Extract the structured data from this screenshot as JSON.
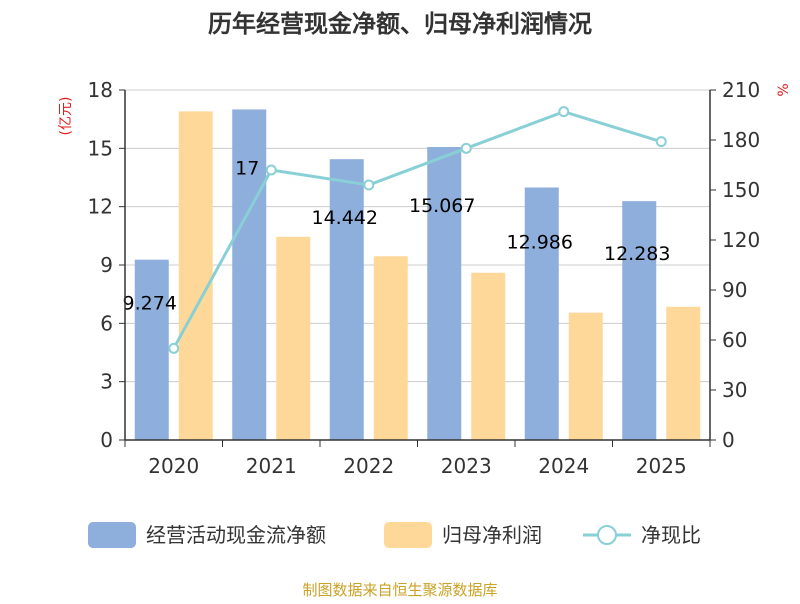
{
  "title": "历年经营现金净额、归母净利润情况",
  "source": "制图数据来自恒生聚源数据库",
  "chart_data": {
    "type": "bar",
    "categories": [
      "2020",
      "2021",
      "2022",
      "2023",
      "2024",
      "2025"
    ],
    "series": [
      {
        "name": "经营活动现金流净额",
        "kind": "bar",
        "axis": "left",
        "color": "#8eaedb",
        "values": [
          9.274,
          17,
          14.442,
          15.067,
          12.986,
          12.283
        ],
        "labels": [
          "9.274",
          "17",
          "14.442",
          "15.067",
          "12.986",
          "12.283"
        ]
      },
      {
        "name": "归母净利润",
        "kind": "bar",
        "axis": "left",
        "color": "#fdd898",
        "values": [
          16.9,
          10.45,
          9.45,
          8.6,
          6.55,
          6.85
        ]
      },
      {
        "name": "净现比",
        "kind": "line",
        "axis": "right",
        "color": "#89d0d6",
        "values": [
          55,
          162,
          153,
          175,
          197,
          179
        ]
      }
    ],
    "y_left": {
      "label": "(亿元)",
      "ylim": [
        0,
        18
      ],
      "ticks": [
        "0",
        "3",
        "6",
        "9",
        "12",
        "15",
        "18"
      ]
    },
    "y_right": {
      "label": "%",
      "ylim": [
        0,
        210
      ],
      "ticks": [
        "0",
        "30",
        "60",
        "90",
        "120",
        "150",
        "180",
        "210"
      ]
    },
    "grid": true,
    "legend": "bottom"
  }
}
